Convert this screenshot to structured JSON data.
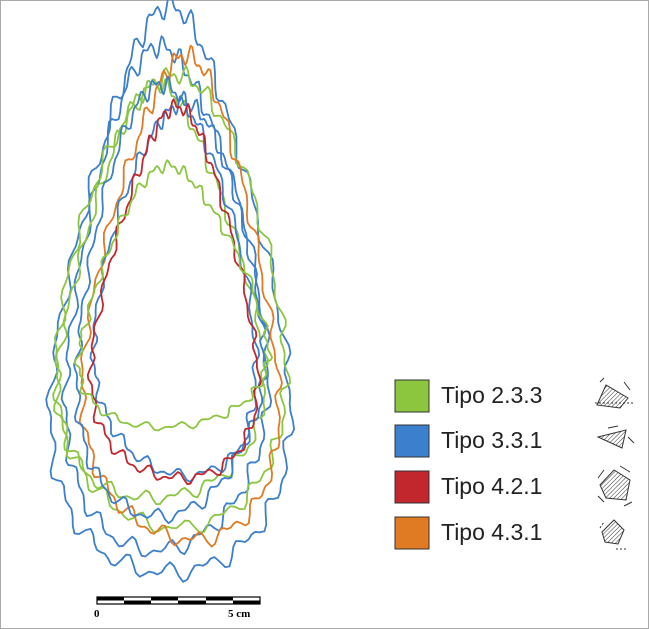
{
  "legend": {
    "items": [
      {
        "label": "Tipo 2.3.3"
      },
      {
        "label": "Tipo 3.3.1"
      },
      {
        "label": "Tipo 4.2.1"
      },
      {
        "label": "Tipo 4.3.1"
      }
    ]
  },
  "scale_bar": {
    "labels": [
      "0",
      "5 cm"
    ]
  }
}
